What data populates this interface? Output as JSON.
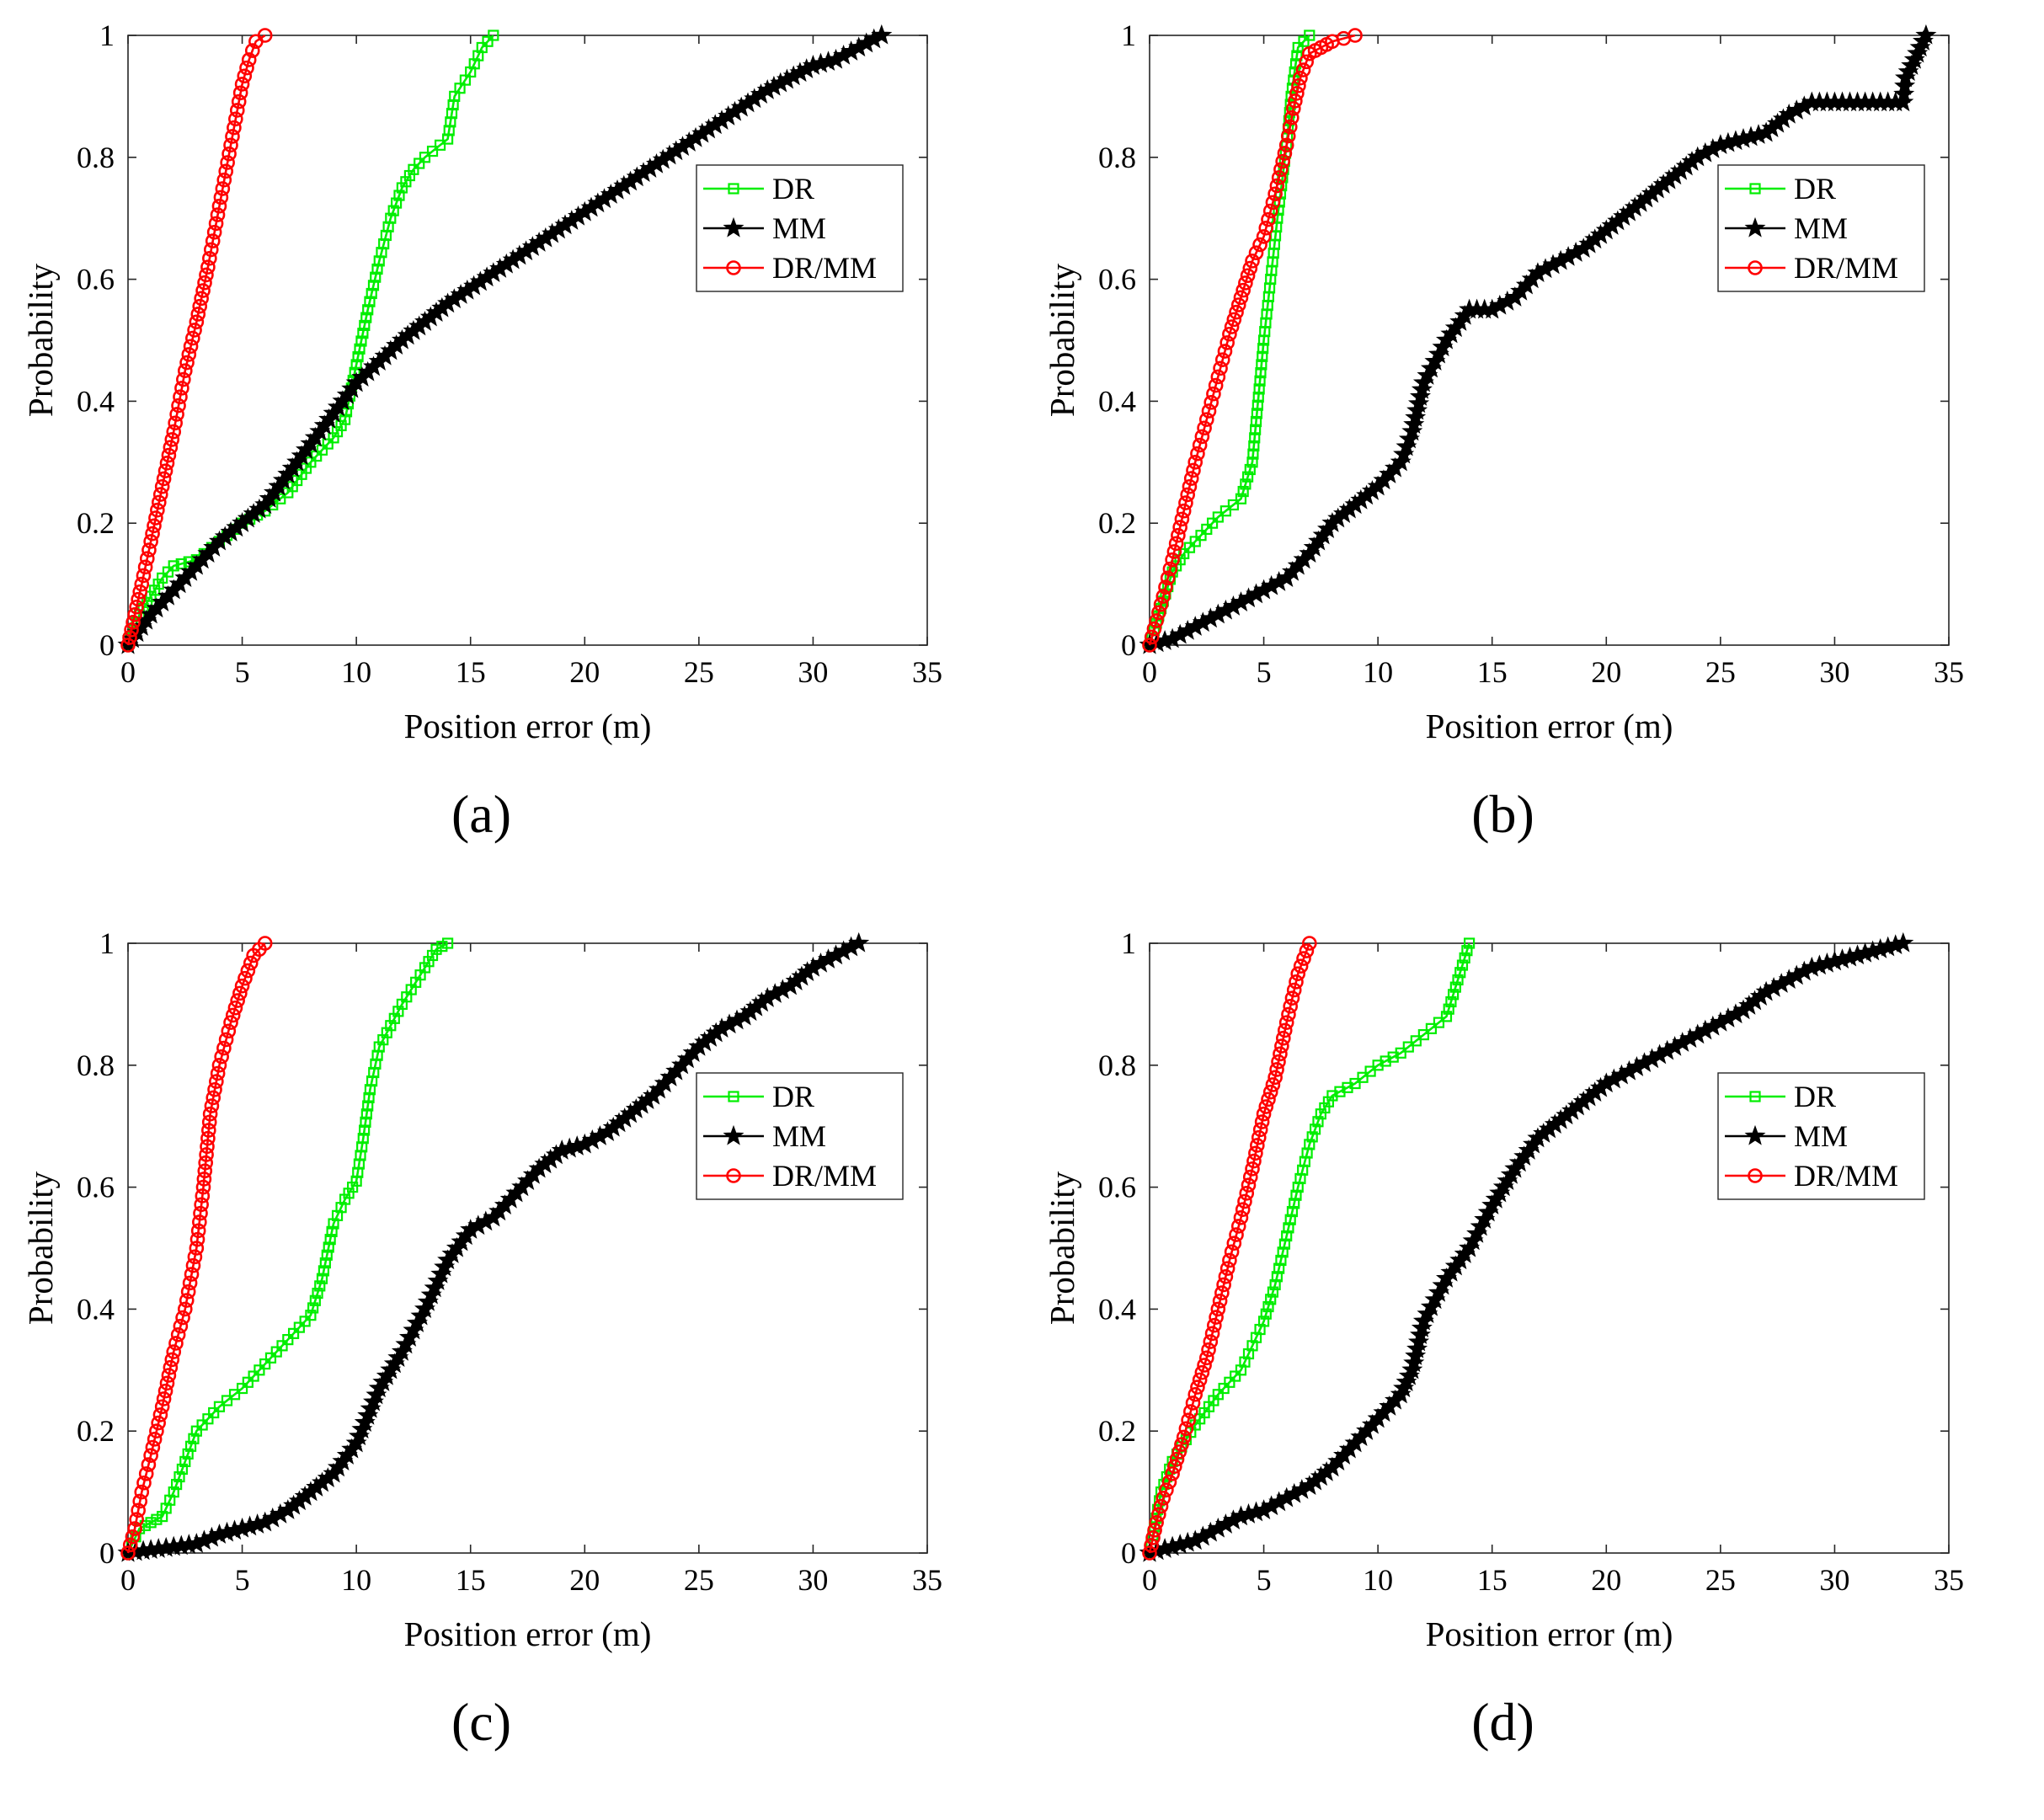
{
  "chart_data": [
    {
      "type": "line",
      "panel_label": "(a)",
      "xlabel": "Position error (m)",
      "ylabel": "Probability",
      "xlim": [
        0,
        35
      ],
      "ylim": [
        0,
        1
      ],
      "xticks": [
        "0",
        "5",
        "10",
        "15",
        "20",
        "25",
        "30",
        "35"
      ],
      "yticks": [
        "0",
        "0.2",
        "0.4",
        "0.6",
        "0.8",
        "1"
      ],
      "legend_position": "right-center",
      "series": [
        {
          "name": "DR",
          "color": "#00ee00",
          "marker": "square",
          "x": [
            0,
            0.5,
            1,
            1.5,
            2,
            3,
            4,
            5,
            6,
            7,
            8,
            9,
            9.5,
            10,
            10.5,
            11,
            11.5,
            12,
            12.5,
            13,
            14,
            14.3,
            15,
            15.5,
            16
          ],
          "y": [
            0,
            0.05,
            0.08,
            0.11,
            0.13,
            0.14,
            0.17,
            0.2,
            0.22,
            0.25,
            0.3,
            0.34,
            0.37,
            0.46,
            0.55,
            0.63,
            0.7,
            0.75,
            0.78,
            0.8,
            0.83,
            0.9,
            0.94,
            0.98,
            1
          ]
        },
        {
          "name": "MM",
          "color": "#000000",
          "marker": "star",
          "x": [
            0,
            1,
            2,
            3,
            4,
            5,
            6,
            7,
            8,
            9,
            10,
            12,
            14,
            16,
            18,
            20,
            22,
            24,
            26,
            28,
            30,
            31,
            32,
            33
          ],
          "y": [
            0,
            0.05,
            0.09,
            0.13,
            0.17,
            0.2,
            0.23,
            0.28,
            0.33,
            0.38,
            0.43,
            0.5,
            0.56,
            0.61,
            0.66,
            0.71,
            0.76,
            0.81,
            0.86,
            0.91,
            0.95,
            0.96,
            0.98,
            1
          ]
        },
        {
          "name": "DR/MM",
          "color": "#ff0000",
          "marker": "circle",
          "x": [
            0,
            0.3,
            0.6,
            1,
            1.5,
            2,
            2.5,
            3,
            3.5,
            4,
            4.5,
            5,
            5.3,
            5.6,
            6
          ],
          "y": [
            0,
            0.05,
            0.1,
            0.17,
            0.26,
            0.35,
            0.45,
            0.53,
            0.62,
            0.72,
            0.82,
            0.92,
            0.96,
            0.99,
            1
          ]
        }
      ]
    },
    {
      "type": "line",
      "panel_label": "(b)",
      "xlabel": "Position error (m)",
      "ylabel": "Probability",
      "xlim": [
        0,
        35
      ],
      "ylim": [
        0,
        1
      ],
      "xticks": [
        "0",
        "5",
        "10",
        "15",
        "20",
        "25",
        "30",
        "35"
      ],
      "yticks": [
        "0",
        "0.2",
        "0.4",
        "0.6",
        "0.8",
        "1"
      ],
      "legend_position": "right-center",
      "series": [
        {
          "name": "DR",
          "color": "#00ee00",
          "marker": "square",
          "x": [
            0,
            0.5,
            1,
            1.5,
            2,
            3,
            4,
            4.5,
            4.7,
            5,
            5.3,
            5.6,
            6,
            6.2,
            6.5,
            7
          ],
          "y": [
            0,
            0.06,
            0.12,
            0.15,
            0.17,
            0.21,
            0.24,
            0.3,
            0.38,
            0.5,
            0.6,
            0.7,
            0.82,
            0.9,
            0.98,
            1
          ]
        },
        {
          "name": "MM",
          "color": "#000000",
          "marker": "star",
          "x": [
            0,
            1,
            2,
            3,
            4,
            5,
            6,
            7,
            8,
            9,
            10,
            11,
            11.5,
            12,
            13,
            14,
            15,
            16,
            17,
            18,
            19,
            20,
            21,
            22,
            23,
            24,
            25,
            26,
            27,
            28,
            29,
            30,
            31,
            32,
            33,
            33.1,
            33.5,
            34
          ],
          "y": [
            0,
            0.01,
            0.03,
            0.05,
            0.07,
            0.09,
            0.11,
            0.15,
            0.2,
            0.23,
            0.26,
            0.3,
            0.35,
            0.43,
            0.5,
            0.55,
            0.55,
            0.57,
            0.61,
            0.63,
            0.65,
            0.68,
            0.71,
            0.74,
            0.77,
            0.8,
            0.82,
            0.83,
            0.84,
            0.87,
            0.89,
            0.89,
            0.89,
            0.89,
            0.89,
            0.93,
            0.96,
            1
          ]
        },
        {
          "name": "DR/MM",
          "color": "#ff0000",
          "marker": "circle",
          "x": [
            0,
            0.3,
            0.6,
            1,
            1.5,
            2,
            2.5,
            3,
            3.5,
            4,
            4.5,
            5,
            5.5,
            6,
            6.3,
            6.6,
            7,
            7.5,
            8,
            8.5,
            9
          ],
          "y": [
            0,
            0.04,
            0.08,
            0.14,
            0.22,
            0.3,
            0.37,
            0.44,
            0.51,
            0.57,
            0.63,
            0.67,
            0.74,
            0.82,
            0.88,
            0.93,
            0.97,
            0.98,
            0.99,
            0.995,
            1
          ]
        }
      ]
    },
    {
      "type": "line",
      "panel_label": "(c)",
      "xlabel": "Position error (m)",
      "ylabel": "Probability",
      "xlim": [
        0,
        35
      ],
      "ylim": [
        0,
        1
      ],
      "xticks": [
        "0",
        "5",
        "10",
        "15",
        "20",
        "25",
        "30",
        "35"
      ],
      "yticks": [
        "0",
        "0.2",
        "0.4",
        "0.6",
        "0.8",
        "1"
      ],
      "legend_position": "right-center",
      "series": [
        {
          "name": "DR",
          "color": "#00ee00",
          "marker": "square",
          "x": [
            0,
            0.5,
            1,
            1.5,
            2,
            2.5,
            3,
            3.5,
            4,
            5,
            6,
            7,
            8,
            8.5,
            9,
            9.5,
            10,
            10.3,
            10.6,
            11,
            12,
            13,
            13.5,
            14
          ],
          "y": [
            0,
            0.04,
            0.05,
            0.06,
            0.1,
            0.15,
            0.2,
            0.22,
            0.24,
            0.27,
            0.31,
            0.35,
            0.39,
            0.45,
            0.54,
            0.58,
            0.61,
            0.68,
            0.76,
            0.83,
            0.9,
            0.96,
            0.99,
            1
          ]
        },
        {
          "name": "MM",
          "color": "#000000",
          "marker": "star",
          "x": [
            0,
            1,
            2,
            3,
            4,
            5,
            6,
            7,
            8,
            9,
            10,
            11,
            12,
            13,
            14,
            15,
            16,
            17,
            18,
            19,
            20,
            21,
            22,
            23,
            24,
            25,
            26,
            27,
            28,
            29,
            30,
            31,
            32
          ],
          "y": [
            0,
            0.005,
            0.01,
            0.015,
            0.03,
            0.04,
            0.05,
            0.07,
            0.1,
            0.13,
            0.18,
            0.27,
            0.33,
            0.4,
            0.48,
            0.53,
            0.55,
            0.59,
            0.63,
            0.66,
            0.67,
            0.69,
            0.72,
            0.75,
            0.79,
            0.83,
            0.86,
            0.88,
            0.91,
            0.93,
            0.96,
            0.98,
            1
          ]
        },
        {
          "name": "DR/MM",
          "color": "#ff0000",
          "marker": "circle",
          "x": [
            0,
            0.3,
            0.6,
            1,
            1.5,
            2,
            2.5,
            3,
            3.3,
            3.6,
            4,
            4.5,
            5,
            5.5,
            6
          ],
          "y": [
            0,
            0.04,
            0.1,
            0.16,
            0.24,
            0.33,
            0.4,
            0.5,
            0.6,
            0.72,
            0.8,
            0.87,
            0.93,
            0.98,
            1
          ]
        }
      ]
    },
    {
      "type": "line",
      "panel_label": "(d)",
      "xlabel": "Position error (m)",
      "ylabel": "Probability",
      "xlim": [
        0,
        35
      ],
      "ylim": [
        0,
        1
      ],
      "xticks": [
        "0",
        "5",
        "10",
        "15",
        "20",
        "25",
        "30",
        "35"
      ],
      "yticks": [
        "0",
        "0.2",
        "0.4",
        "0.6",
        "0.8",
        "1"
      ],
      "legend_position": "right-center",
      "series": [
        {
          "name": "DR",
          "color": "#00ee00",
          "marker": "square",
          "x": [
            0,
            0.5,
            1,
            2,
            3,
            4,
            5,
            5.5,
            6,
            6.5,
            7,
            7.5,
            8,
            9,
            10,
            11,
            12,
            13,
            13.5,
            14
          ],
          "y": [
            0,
            0.1,
            0.15,
            0.21,
            0.26,
            0.3,
            0.38,
            0.44,
            0.52,
            0.6,
            0.67,
            0.72,
            0.75,
            0.77,
            0.8,
            0.82,
            0.85,
            0.88,
            0.94,
            1
          ]
        },
        {
          "name": "MM",
          "color": "#000000",
          "marker": "star",
          "x": [
            0,
            1,
            2,
            3,
            4,
            5,
            6,
            7,
            8,
            9,
            10,
            11,
            11.5,
            12,
            13,
            14,
            15,
            16,
            17,
            18,
            19,
            20,
            21,
            22,
            23,
            24,
            25,
            26,
            27,
            28,
            29,
            30,
            31,
            32,
            33
          ],
          "y": [
            0,
            0.01,
            0.02,
            0.04,
            0.06,
            0.07,
            0.09,
            0.11,
            0.14,
            0.18,
            0.22,
            0.26,
            0.3,
            0.38,
            0.45,
            0.5,
            0.57,
            0.63,
            0.68,
            0.71,
            0.74,
            0.77,
            0.79,
            0.81,
            0.83,
            0.85,
            0.87,
            0.89,
            0.92,
            0.94,
            0.96,
            0.97,
            0.98,
            0.99,
            1
          ]
        },
        {
          "name": "DR/MM",
          "color": "#ff0000",
          "marker": "circle",
          "x": [
            0,
            0.3,
            0.6,
            1,
            1.5,
            2,
            2.5,
            3,
            3.5,
            4,
            4.5,
            5,
            5.5,
            6,
            6.5,
            7
          ],
          "y": [
            0,
            0.05,
            0.09,
            0.13,
            0.19,
            0.26,
            0.32,
            0.4,
            0.48,
            0.55,
            0.63,
            0.72,
            0.78,
            0.87,
            0.95,
            1
          ]
        }
      ]
    }
  ]
}
